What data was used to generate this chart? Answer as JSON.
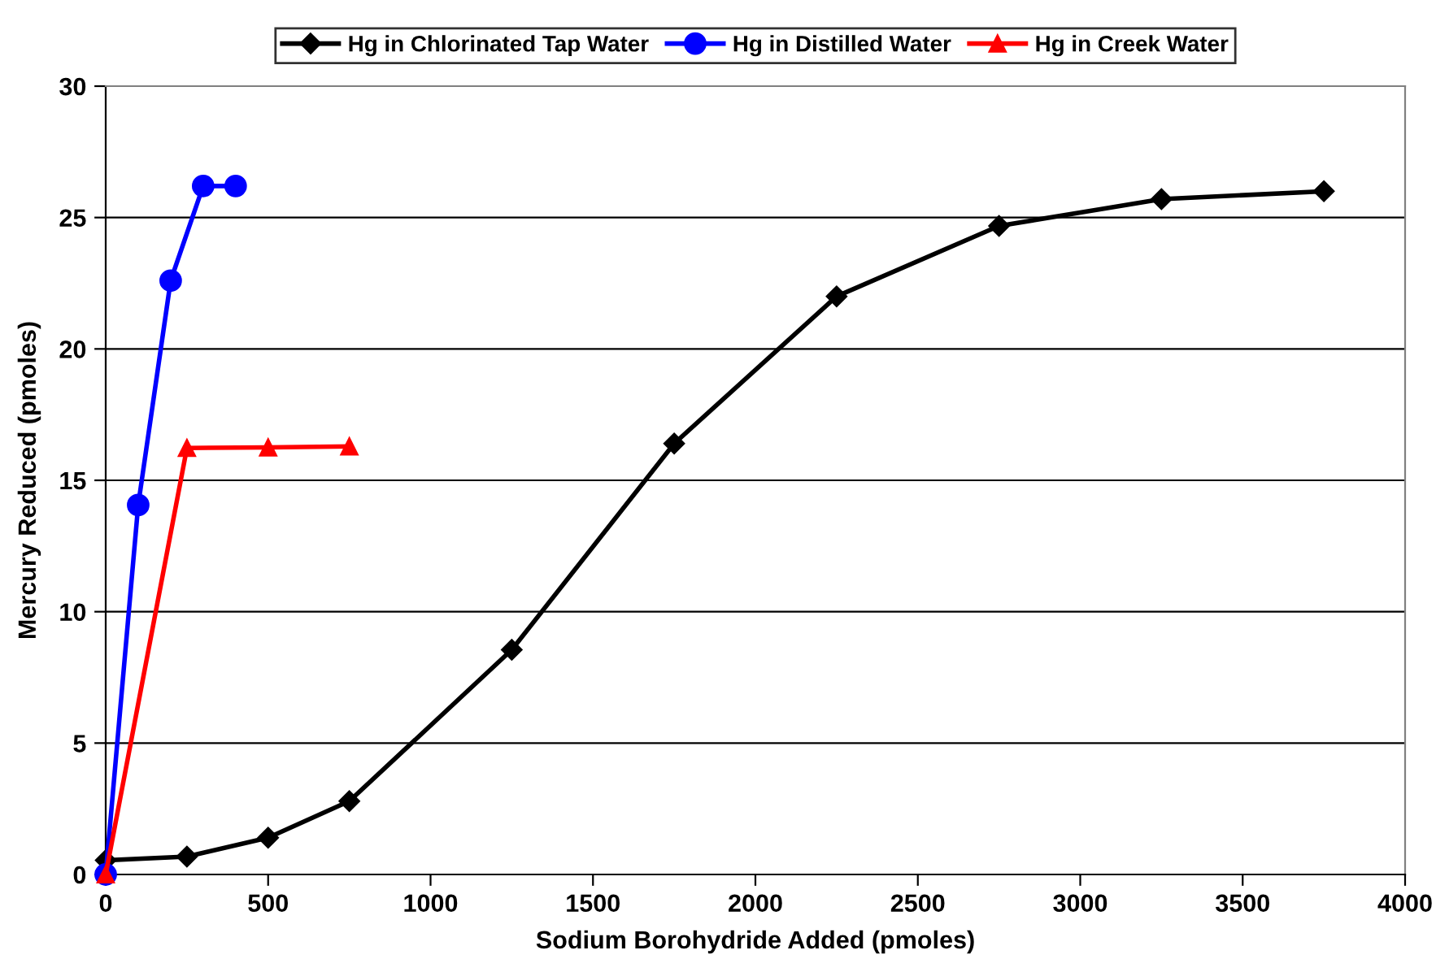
{
  "chart_data": {
    "type": "line",
    "xlabel": "Sodium Borohydride Added (pmoles)",
    "ylabel": "Mercury Reduced (pmoles)",
    "series": [
      {
        "name": "Hg in Chlorinated Tap Water",
        "color": "#000000",
        "marker": "diamond",
        "x": [
          0,
          250,
          500,
          750,
          1250,
          1750,
          2250,
          2750,
          3250,
          3750
        ],
        "values": [
          0.54,
          0.68,
          1.4,
          2.79,
          8.55,
          16.4,
          22.0,
          24.68,
          25.7,
          26.0
        ]
      },
      {
        "name": "Hg in Distilled Water",
        "color": "#0000ff",
        "marker": "circle",
        "x": [
          0,
          100,
          200,
          300,
          400
        ],
        "values": [
          0,
          14.06,
          22.6,
          26.2,
          26.2
        ]
      },
      {
        "name": "Hg in Creek Water",
        "color": "#ff0000",
        "marker": "triangle",
        "x": [
          0,
          250,
          500,
          750
        ],
        "values": [
          0,
          16.23,
          16.25,
          16.29
        ]
      }
    ],
    "xlim": [
      0,
      4000
    ],
    "xticks": [
      0,
      500,
      1000,
      1500,
      2000,
      2500,
      3000,
      3500,
      4000
    ],
    "ylim": [
      0,
      30
    ],
    "yticks": [
      0,
      5,
      10,
      15,
      20,
      25,
      30
    ],
    "grid": "y",
    "legend": "top",
    "line_style": "solid"
  }
}
